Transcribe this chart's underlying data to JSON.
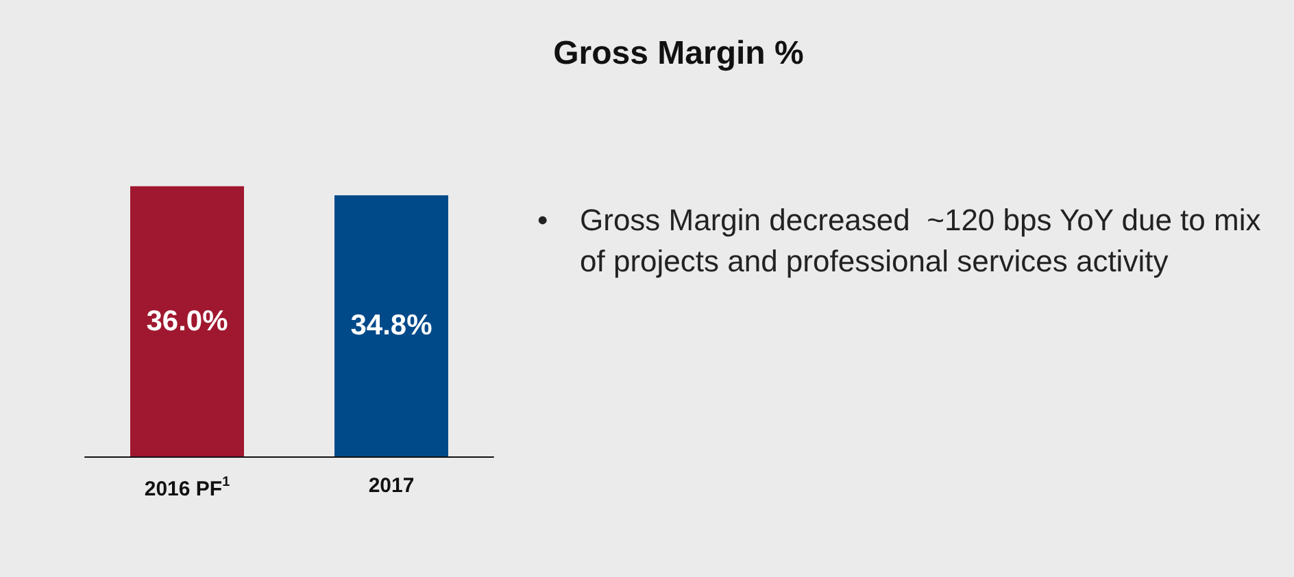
{
  "chart_data": {
    "type": "bar",
    "title": "Gross Margin %",
    "categories": [
      "2016 PF$^{1}$",
      "2017"
    ],
    "values": [
      36.0,
      34.8
    ],
    "colors": [
      "#a0182f",
      "#004a8a"
    ],
    "value_labels": [
      "36.0%",
      "34.8%"
    ],
    "annotations": [
      "•\tGross Margin decreased  ~120 bps YoY due to mix of projects and professional services activity"
    ]
  }
}
